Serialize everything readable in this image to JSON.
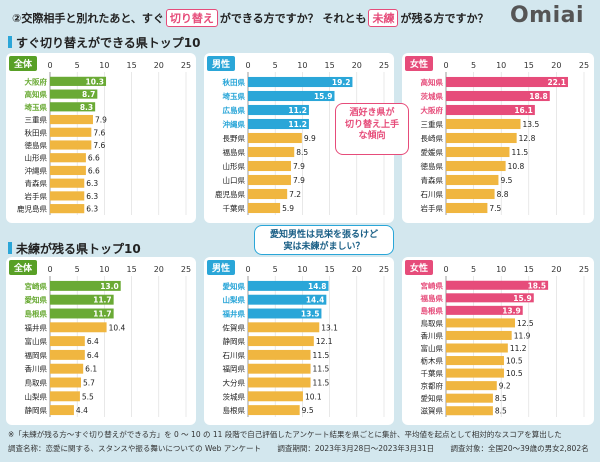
{
  "header": {
    "q_prefix": "②交際相手と別れたあと、すぐ",
    "hl1": "切り替え",
    "q_mid": "ができる方ですか？ それとも",
    "hl2": "未練",
    "q_suffix": "が残る方ですか？",
    "logo": "Omiai"
  },
  "sections": {
    "top": "すぐ切り替えができる県トップ10",
    "bottom": "未練が残る県トップ10"
  },
  "bubbles": {
    "pink": "酒好き県が\n切り替え上手\nな傾向",
    "blue": "愛知男性は見栄を張るけど\n実は未練がましい？"
  },
  "colors": {
    "bg": "#d3e7ee",
    "all_top": "#6aaa35",
    "male_top": "#2aa6d8",
    "female_top": "#e64c7a",
    "rest": "#f0b640",
    "all_tag": "#58a026",
    "male_tag": "#2aa6d8",
    "female_tag": "#e64c7a"
  },
  "chart_data": [
    {
      "type": "bar",
      "orientation": "horizontal",
      "panel": "全体",
      "categories": [
        "大阪府",
        "高知県",
        "埼玉県",
        "三重県",
        "秋田県",
        "徳島県",
        "山形県",
        "沖縄県",
        "青森県",
        "岩手県",
        "鹿児島県"
      ],
      "values": [
        10.3,
        8.7,
        8.3,
        7.9,
        7.6,
        7.6,
        6.6,
        6.6,
        6.3,
        6.3,
        6.3
      ],
      "highlight_count": 3,
      "xlim": [
        0,
        25
      ],
      "xticks": [
        0,
        5,
        10,
        15,
        20,
        25
      ]
    },
    {
      "type": "bar",
      "orientation": "horizontal",
      "panel": "男性",
      "categories": [
        "秋田県",
        "埼玉県",
        "広島県",
        "沖縄県",
        "長野県",
        "福島県",
        "山形県",
        "山口県",
        "鹿児島県",
        "千葉県"
      ],
      "values": [
        19.2,
        15.9,
        11.2,
        11.2,
        9.9,
        8.5,
        7.9,
        7.9,
        7.2,
        5.9
      ],
      "highlight_count": 4,
      "xlim": [
        0,
        25
      ],
      "xticks": [
        0,
        5,
        10,
        15,
        20,
        25
      ]
    },
    {
      "type": "bar",
      "orientation": "horizontal",
      "panel": "女性",
      "categories": [
        "高知県",
        "茨城県",
        "大阪府",
        "三重県",
        "長崎県",
        "愛媛県",
        "徳島県",
        "青森県",
        "石川県",
        "岩手県"
      ],
      "values": [
        22.1,
        18.8,
        16.1,
        13.5,
        12.8,
        11.5,
        10.8,
        9.5,
        8.8,
        7.5
      ],
      "highlight_count": 3,
      "xlim": [
        0,
        25
      ],
      "xticks": [
        0,
        5,
        10,
        15,
        20,
        25
      ]
    },
    {
      "type": "bar",
      "orientation": "horizontal",
      "panel": "全体",
      "categories": [
        "宮崎県",
        "愛知県",
        "島根県",
        "福井県",
        "富山県",
        "福岡県",
        "香川県",
        "鳥取県",
        "山梨県",
        "静岡県"
      ],
      "values": [
        13.0,
        11.7,
        11.7,
        10.4,
        6.4,
        6.4,
        6.1,
        5.7,
        5.5,
        4.4
      ],
      "highlight_count": 3,
      "xlim": [
        0,
        25
      ],
      "xticks": [
        0,
        5,
        10,
        15,
        20,
        25
      ]
    },
    {
      "type": "bar",
      "orientation": "horizontal",
      "panel": "男性",
      "categories": [
        "愛知県",
        "山梨県",
        "福井県",
        "佐賀県",
        "静岡県",
        "石川県",
        "福岡県",
        "大分県",
        "茨城県",
        "島根県"
      ],
      "values": [
        14.8,
        14.4,
        13.5,
        13.1,
        12.1,
        11.5,
        11.5,
        11.5,
        10.1,
        9.5
      ],
      "highlight_count": 3,
      "xlim": [
        0,
        25
      ],
      "xticks": [
        0,
        5,
        10,
        15,
        20,
        25
      ]
    },
    {
      "type": "bar",
      "orientation": "horizontal",
      "panel": "女性",
      "categories": [
        "宮崎県",
        "福島県",
        "島根県",
        "鳥取県",
        "香川県",
        "富山県",
        "栃木県",
        "千葉県",
        "京都府",
        "愛知県",
        "滋賀県"
      ],
      "values": [
        18.5,
        15.9,
        13.9,
        12.5,
        11.9,
        11.2,
        10.5,
        10.5,
        9.2,
        8.5,
        8.5
      ],
      "highlight_count": 3,
      "xlim": [
        0,
        25
      ],
      "xticks": [
        0,
        5,
        10,
        15,
        20,
        25
      ]
    }
  ],
  "footer": {
    "note": "※「未練が残る方〜すぐ切り替えができる方」を 0 〜 10 の 11 段階で自己評価したアンケート結果を県ごとに集計、平均値を起点として相対的なスコアを算出した",
    "survey_name": "調査名称：恋愛に関する、スタンスや振る舞いについての Web アンケート",
    "period": "調査期間：2023年3月28日〜2023年3月31日",
    "target": "調査対象：全国20〜39歳の男女2,802名"
  }
}
